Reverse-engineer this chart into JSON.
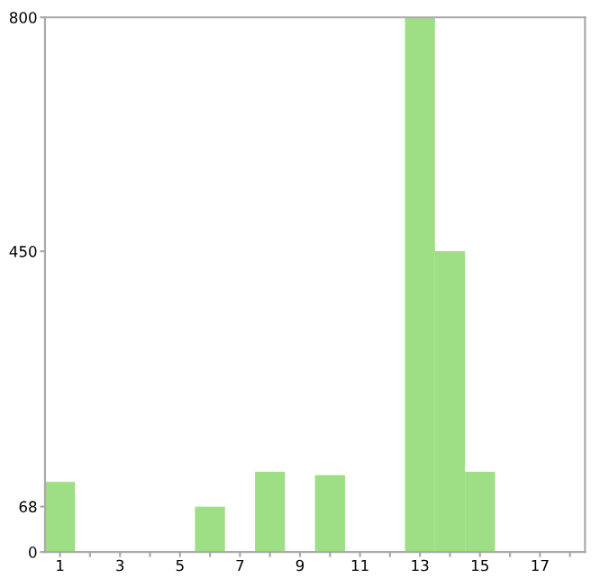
{
  "chart_data": {
    "type": "bar",
    "categories": [
      "1",
      null,
      "3",
      null,
      "5",
      null,
      "7",
      null,
      "9",
      null,
      "11",
      null,
      "13",
      null,
      "15",
      null,
      "17",
      null
    ],
    "values": [
      105,
      0,
      0,
      0,
      0,
      68,
      0,
      120,
      0,
      115,
      0,
      0,
      800,
      450,
      120,
      0,
      0,
      0
    ],
    "color": "#9ede84",
    "ylim": [
      0,
      800
    ],
    "yticks": [
      0,
      68,
      450,
      800
    ],
    "grid": false
  }
}
